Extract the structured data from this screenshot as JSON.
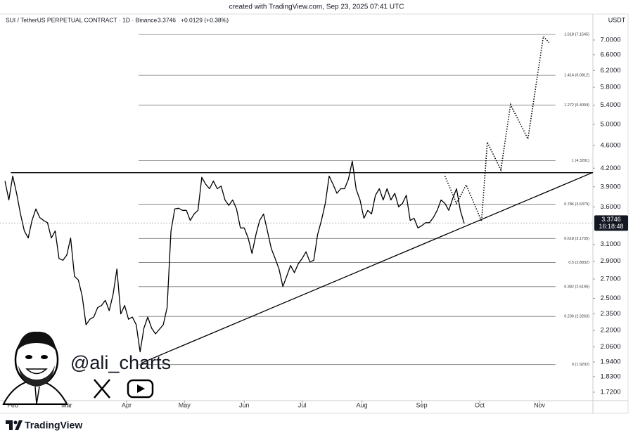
{
  "credit": "created with TradingView.com, Sep 23, 2025 07:41 UTC",
  "watermark": "@ali_charts",
  "brand": "TradingView",
  "chart_data": {
    "type": "line",
    "title": "SUI / TetherUS PERPETUAL CONTRACT · 1D · Binance",
    "last_price": 3.3746,
    "change": "+0.0129 (+0.38%)",
    "countdown": "16:18:48",
    "y_label": "USDT",
    "log_scale": true,
    "grid": false,
    "xlim": [
      25.4,
      332.7
    ],
    "ylim": [
      1.663,
      7.34
    ],
    "xticks": [
      {
        "value": 32,
        "label": "Feb"
      },
      {
        "value": 60,
        "label": "Mar"
      },
      {
        "value": 91,
        "label": "Apr"
      },
      {
        "value": 121,
        "label": "May"
      },
      {
        "value": 152,
        "label": "Jun"
      },
      {
        "value": 182,
        "label": "Jul"
      },
      {
        "value": 213,
        "label": "Aug"
      },
      {
        "value": 244,
        "label": "Sep"
      },
      {
        "value": 274,
        "label": "Oct"
      },
      {
        "value": 305,
        "label": "Nov"
      }
    ],
    "yticks": [
      {
        "value": 7,
        "label": "7.0000"
      },
      {
        "value": 6.6,
        "label": "6.6000"
      },
      {
        "value": 6.2,
        "label": "6.2000"
      },
      {
        "value": 5.8,
        "label": "5.8000"
      },
      {
        "value": 5.4,
        "label": "5.4000"
      },
      {
        "value": 5,
        "label": "5.0000"
      },
      {
        "value": 4.6,
        "label": "4.6000"
      },
      {
        "value": 4.2,
        "label": "4.2000"
      },
      {
        "value": 3.9,
        "label": "3.9000"
      },
      {
        "value": 3.6,
        "label": "3.6000"
      },
      {
        "value": 3.1,
        "label": "3.1000"
      },
      {
        "value": 2.9,
        "label": "2.9000"
      },
      {
        "value": 2.7,
        "label": "2.7000"
      },
      {
        "value": 2.5,
        "label": "2.5000"
      },
      {
        "value": 2.35,
        "label": "2.3500"
      },
      {
        "value": 2.2,
        "label": "2.2000"
      },
      {
        "value": 2.06,
        "label": "2.0600"
      },
      {
        "value": 1.94,
        "label": "1.9400"
      },
      {
        "value": 1.83,
        "label": "1.8300"
      },
      {
        "value": 1.72,
        "label": "1.7200"
      }
    ],
    "series": [
      {
        "color": "#000000",
        "style": "solid",
        "x": [
          28,
          30,
          32,
          34,
          36,
          38,
          40,
          42,
          44,
          46,
          48,
          50,
          52,
          54,
          56,
          58,
          60,
          62,
          64,
          66,
          68,
          70,
          72,
          74,
          76,
          78,
          80,
          82,
          84,
          86,
          88,
          90,
          92,
          94,
          96,
          98,
          100,
          102,
          104,
          106,
          108,
          110,
          112,
          114,
          116,
          118,
          120,
          122,
          124,
          126,
          128,
          130,
          132,
          134,
          136,
          138,
          140,
          142,
          144,
          146,
          148,
          150,
          152,
          154,
          156,
          158,
          160,
          162,
          164,
          166,
          168,
          170,
          172,
          174,
          176,
          178,
          180,
          182,
          184,
          186,
          188,
          190,
          192,
          194,
          196,
          198,
          200,
          202,
          204,
          206,
          208,
          210,
          212,
          214,
          216,
          218,
          220,
          222,
          224,
          226,
          228,
          230,
          232,
          234,
          236,
          238,
          240,
          242,
          244,
          246,
          248,
          250,
          252,
          254,
          256,
          258,
          260,
          262,
          264,
          266
        ],
        "values": [
          3.99,
          3.7,
          4.07,
          3.8,
          3.5,
          3.27,
          3.18,
          3.41,
          3.57,
          3.45,
          3.41,
          3.38,
          3.18,
          3.27,
          2.93,
          2.91,
          2.97,
          3.18,
          2.73,
          2.69,
          2.52,
          2.25,
          2.3,
          2.32,
          2.41,
          2.43,
          2.48,
          2.38,
          2.54,
          2.81,
          2.35,
          2.43,
          2.3,
          2.32,
          2.25,
          2.02,
          2.22,
          2.32,
          2.22,
          2.17,
          2.21,
          2.25,
          2.41,
          3.27,
          3.57,
          3.58,
          3.55,
          3.55,
          3.41,
          3.5,
          3.55,
          4.05,
          3.94,
          3.87,
          3.99,
          3.87,
          3.91,
          3.7,
          3.62,
          3.7,
          3.57,
          3.31,
          3.31,
          3.18,
          2.99,
          3.22,
          3.41,
          3.5,
          3.27,
          3.05,
          2.93,
          2.81,
          2.62,
          2.73,
          2.85,
          2.77,
          2.87,
          2.93,
          3.01,
          2.89,
          2.91,
          3.22,
          3.41,
          3.65,
          4.07,
          3.94,
          3.8,
          3.87,
          3.87,
          4.02,
          4.32,
          3.86,
          3.7,
          3.44,
          3.55,
          3.5,
          3.77,
          3.87,
          3.7,
          3.87,
          3.7,
          3.8,
          3.6,
          3.65,
          3.77,
          3.41,
          3.44,
          3.31,
          3.34,
          3.38,
          3.38,
          3.45,
          3.55,
          3.7,
          3.65,
          3.55,
          3.72,
          3.87,
          3.55,
          3.37
        ]
      },
      {
        "color": "#000000",
        "style": "dotted",
        "x": [
          256,
          262,
          267,
          275,
          278,
          285,
          290,
          299,
          307,
          310
        ],
        "values": [
          4.07,
          3.65,
          3.93,
          3.4,
          4.66,
          4.17,
          5.41,
          4.72,
          7.1,
          6.93
        ]
      }
    ],
    "lines": [
      {
        "x": [
          31,
          332.7
        ],
        "values": [
          4.125,
          4.125
        ]
      },
      {
        "x": [
          98.4,
          332.7
        ],
        "values": [
          1.93,
          4.13
        ]
      }
    ],
    "fib_range": [
      97.2,
      313.3
    ],
    "fib_levels": [
      {
        "value": 7.1545,
        "label": "1.618 (7.1545)"
      },
      {
        "value": 6.0812,
        "label": "1.414 (6.0812)"
      },
      {
        "value": 5.4004,
        "label": "1.272 (5.4004)"
      },
      {
        "value": 4.3291,
        "label": "1 (4.3291)"
      },
      {
        "value": 3.6379,
        "label": "0.786 (3.6379)"
      },
      {
        "value": 3.1735,
        "label": "0.618 (3.1735)"
      },
      {
        "value": 2.8832,
        "label": "0.5 (2.8832)"
      },
      {
        "value": 2.6195,
        "label": "0.382 (2.6195)"
      },
      {
        "value": 2.3263,
        "label": "0.236 (2.3263)"
      },
      {
        "value": 1.9202,
        "label": "0 (1.9202)"
      }
    ]
  }
}
